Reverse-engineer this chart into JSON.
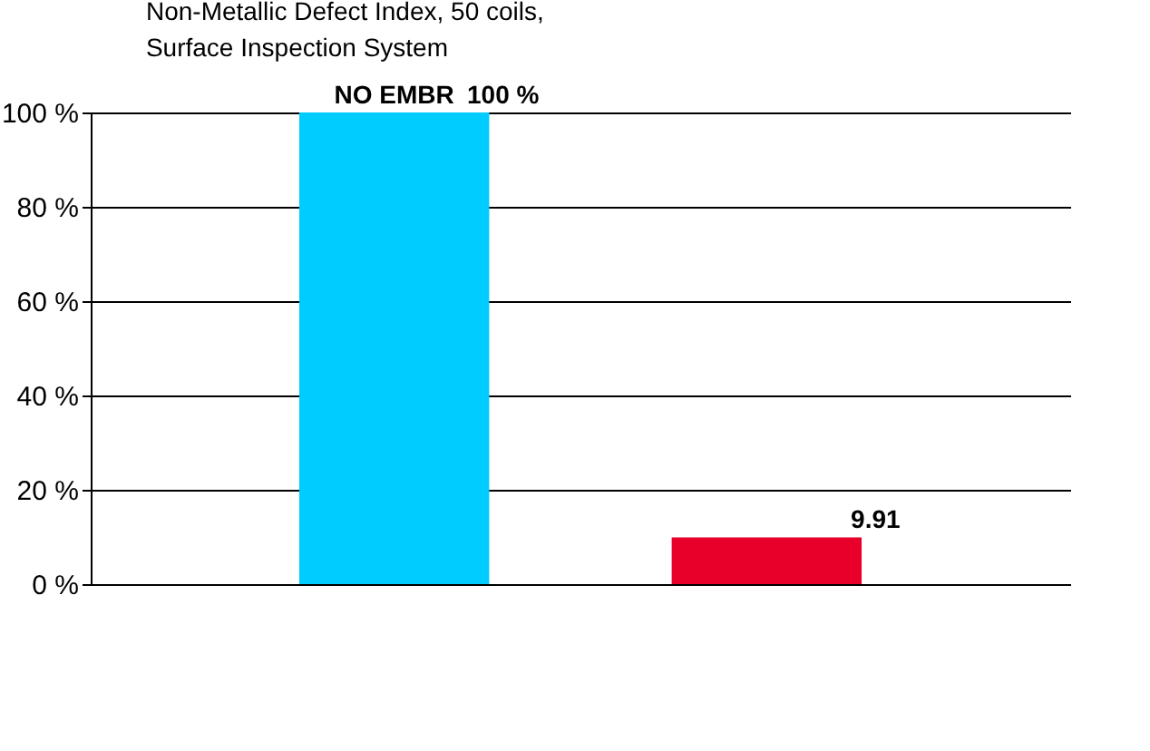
{
  "chart_data": {
    "type": "bar",
    "title": "Non-Metallic Defect Index, 50 coils,\nSurface Inspection System",
    "categories": [
      "NO EMBR",
      null
    ],
    "values": [
      100,
      9.91
    ],
    "colors": [
      "#00ccff",
      "#e8002a"
    ],
    "value_labels": [
      "100 %",
      "9.91"
    ],
    "ylim": [
      0,
      100
    ],
    "yticks": [
      {
        "value": 0,
        "label": "0 %"
      },
      {
        "value": 20,
        "label": "20 %"
      },
      {
        "value": 40,
        "label": "40 %"
      },
      {
        "value": 60,
        "label": "60 %"
      },
      {
        "value": 80,
        "label": "80 %"
      },
      {
        "value": 100,
        "label": "100 %"
      }
    ],
    "grid": "y",
    "tick_labels": "y"
  }
}
